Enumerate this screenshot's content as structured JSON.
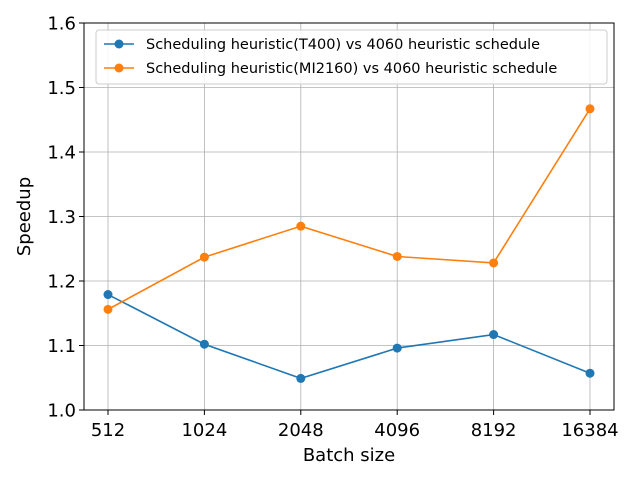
{
  "chart_data": {
    "type": "line",
    "title": "",
    "xlabel": "Batch size",
    "ylabel": "Speedup",
    "categories": [
      "512",
      "1024",
      "2048",
      "4096",
      "8192",
      "16384"
    ],
    "ylim": [
      1.0,
      1.6
    ],
    "yticks": [
      "1.0",
      "1.1",
      "1.2",
      "1.3",
      "1.4",
      "1.5",
      "1.6"
    ],
    "grid": true,
    "legend_position": "top-right",
    "series": [
      {
        "name": "Scheduling heuristic(T400) vs 4060 heuristic schedule",
        "color": "#1f77b4",
        "values": [
          1.179,
          1.102,
          1.049,
          1.096,
          1.117,
          1.057
        ]
      },
      {
        "name": "Scheduling heuristic(MI2160) vs 4060 heuristic schedule",
        "color": "#ff7f0e",
        "values": [
          1.156,
          1.237,
          1.285,
          1.238,
          1.228,
          1.467
        ]
      }
    ]
  }
}
